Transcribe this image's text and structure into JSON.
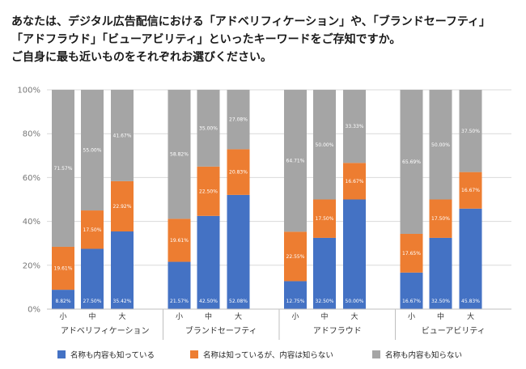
{
  "question": {
    "lines": [
      "あなたは、デジタル広告配信における「アドベリフィケーション」や、「ブランドセーフティ」",
      "「アドフラウド」「ビューアビリティ」といったキーワードをご存知ですか。",
      "ご自身に最も近いものをそれぞれお選びください。"
    ]
  },
  "chart_data": {
    "type": "bar",
    "stacked": true,
    "percent": true,
    "ylim": [
      0,
      100
    ],
    "yticks": [
      "0%",
      "20%",
      "40%",
      "60%",
      "80%",
      "100%"
    ],
    "grid": true,
    "legend_position": "bottom",
    "groups": [
      {
        "label": "アドベリフィケーション",
        "categories": [
          "小",
          "中",
          "大"
        ]
      },
      {
        "label": "ブランドセーフティ",
        "categories": [
          "小",
          "中",
          "大"
        ]
      },
      {
        "label": "アドフラウド",
        "categories": [
          "小",
          "中",
          "大"
        ]
      },
      {
        "label": "ビューアビリティ",
        "categories": [
          "小",
          "中",
          "大"
        ]
      }
    ],
    "series": [
      {
        "name": "名称も内容も知っている",
        "color": "#4472c4",
        "values": [
          8.82,
          27.5,
          35.42,
          21.57,
          42.5,
          52.08,
          12.75,
          32.5,
          50.0,
          16.67,
          32.5,
          45.83
        ],
        "labels": [
          "8.82%",
          "27.50%",
          "35.42%",
          "21.57%",
          "42.50%",
          "52.08%",
          "12.75%",
          "32.50%",
          "50.00%",
          "16.67%",
          "32.50%",
          "45.83%"
        ]
      },
      {
        "name": "名称は知っているが、内容は知らない",
        "color": "#ed7d31",
        "values": [
          19.61,
          17.5,
          22.92,
          19.61,
          22.5,
          20.83,
          22.55,
          17.5,
          16.67,
          17.65,
          17.5,
          16.67
        ],
        "labels": [
          "19.61%",
          "17.50%",
          "22.92%",
          "19.61%",
          "22.50%",
          "20.83%",
          "22.55%",
          "17.50%",
          "16.67%",
          "17.65%",
          "17.50%",
          "16.67%"
        ]
      },
      {
        "name": "名称も内容も知らない",
        "color": "#a5a5a5",
        "values": [
          71.57,
          55.0,
          41.67,
          58.82,
          35.0,
          27.08,
          64.71,
          50.0,
          33.33,
          65.69,
          50.0,
          37.5
        ],
        "labels": [
          "71.57%",
          "55.00%",
          "41.67%",
          "58.82%",
          "35.00%",
          "27.08%",
          "64.71%",
          "50.00%",
          "33.33%",
          "65.69%",
          "50.00%",
          "37.50%"
        ]
      }
    ]
  },
  "colors": {
    "gridline": "#d9d9d9",
    "separator": "#bfbfbf"
  }
}
